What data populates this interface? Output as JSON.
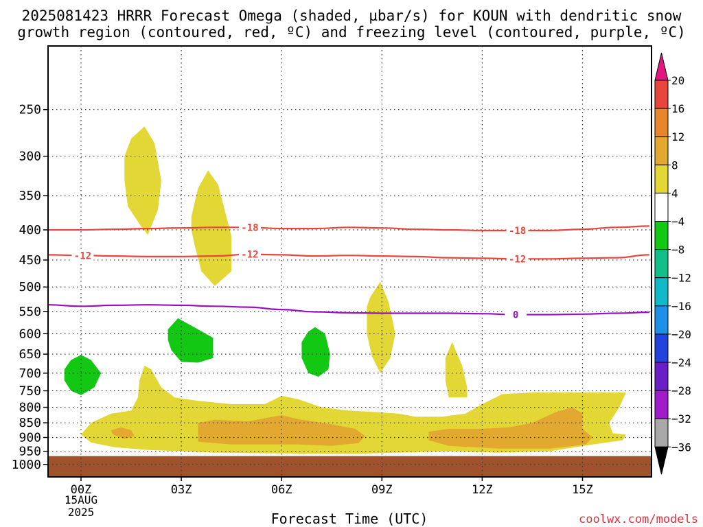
{
  "chart_data": {
    "type": "heatmap",
    "title_line1": "2025081423 HRRR Forecast Omega (shaded, µbar/s) for KOUN with dendritic snow",
    "title_line2": "growth region (contoured, red, ºC) and freezing level (contoured, purple, ºC)",
    "xlabel": "Forecast Time (UTC)",
    "ylabel": "",
    "x_unit": "forecast hours from 2025-08-15 00Z",
    "xlim": [
      -1,
      17
    ],
    "ylim": [
      1050,
      195
    ],
    "y_scale": "log",
    "x_ticks": [
      {
        "x": 0,
        "label": "00Z"
      },
      {
        "x": 3,
        "label": "03Z"
      },
      {
        "x": 6,
        "label": "06Z"
      },
      {
        "x": 9,
        "label": "09Z"
      },
      {
        "x": 12,
        "label": "12Z"
      },
      {
        "x": 15,
        "label": "15Z"
      }
    ],
    "x_date_label": "15AUG",
    "x_year_label": "2025",
    "y_ticks": [
      250,
      300,
      350,
      400,
      450,
      500,
      550,
      600,
      650,
      700,
      750,
      800,
      850,
      900,
      950,
      1000
    ],
    "grid": true,
    "colorbar": {
      "placement": "right",
      "ticks": [
        "20",
        "16",
        "12",
        "8",
        "4",
        "−4",
        "−8",
        "−12",
        "−16",
        "−20",
        "−24",
        "−28",
        "−32",
        "−36"
      ],
      "bands": [
        {
          "from": 16,
          "to": 20,
          "color": "#e8453c"
        },
        {
          "from": 12,
          "to": 16,
          "color": "#e8862e"
        },
        {
          "from": 8,
          "to": 12,
          "color": "#e3a82f"
        },
        {
          "from": 4,
          "to": 8,
          "color": "#e3d735"
        },
        {
          "from": -4,
          "to": 4,
          "color": "#ffffff"
        },
        {
          "from": -8,
          "to": -4,
          "color": "#13c813"
        },
        {
          "from": -12,
          "to": -8,
          "color": "#13bf88"
        },
        {
          "from": -16,
          "to": -12,
          "color": "#12b9c6"
        },
        {
          "from": -20,
          "to": -16,
          "color": "#1e90e8"
        },
        {
          "from": -24,
          "to": -20,
          "color": "#2244dd"
        },
        {
          "from": -28,
          "to": -24,
          "color": "#6a1ec8"
        },
        {
          "from": -32,
          "to": -28,
          "color": "#a01cc8"
        },
        {
          "from": -36,
          "to": -32,
          "color": "#a8a8a8"
        }
      ],
      "top_arrow_color": "#e0157e",
      "bottom_arrow_color": "#000000"
    },
    "ground": {
      "color": "#a0522d",
      "top_pressure": 968
    },
    "shaded_regions": [
      {
        "name": "lift-300mb-01z",
        "level": "4 to 8",
        "color": "#e3d735",
        "points": [
          [
            1.3,
            300
          ],
          [
            1.5,
            280
          ],
          [
            1.9,
            267
          ],
          [
            2.2,
            285
          ],
          [
            2.4,
            330
          ],
          [
            2.3,
            370
          ],
          [
            2.0,
            408
          ],
          [
            1.8,
            395
          ],
          [
            1.4,
            365
          ],
          [
            1.3,
            330
          ]
        ]
      },
      {
        "name": "lift-400mb-04z",
        "level": "4 to 8",
        "color": "#e3d735",
        "points": [
          [
            3.3,
            380
          ],
          [
            3.5,
            340
          ],
          [
            3.8,
            317
          ],
          [
            4.1,
            335
          ],
          [
            4.5,
            410
          ],
          [
            4.5,
            470
          ],
          [
            4.0,
            498
          ],
          [
            3.6,
            470
          ],
          [
            3.4,
            425
          ],
          [
            3.3,
            400
          ]
        ]
      },
      {
        "name": "lift-600mb-09z",
        "level": "4 to 8",
        "color": "#e3d735",
        "points": [
          [
            8.55,
            540
          ],
          [
            8.65,
            520
          ],
          [
            8.95,
            490
          ],
          [
            9.2,
            530
          ],
          [
            9.4,
            600
          ],
          [
            9.25,
            660
          ],
          [
            8.95,
            700
          ],
          [
            8.7,
            655
          ],
          [
            8.55,
            600
          ]
        ]
      },
      {
        "name": "lift-700mb-11z",
        "level": "4 to 8",
        "color": "#e3d735",
        "points": [
          [
            10.9,
            660
          ],
          [
            11.1,
            620
          ],
          [
            11.4,
            680
          ],
          [
            11.55,
            740
          ],
          [
            11.55,
            770
          ],
          [
            11.0,
            770
          ],
          [
            10.9,
            720
          ]
        ]
      },
      {
        "name": "lift-850mb-band",
        "level": "4 to 8",
        "color": "#e3d735",
        "points": [
          [
            0.0,
            890
          ],
          [
            0.3,
            850
          ],
          [
            0.9,
            820
          ],
          [
            1.5,
            810
          ],
          [
            1.7,
            770
          ],
          [
            1.75,
            720
          ],
          [
            1.9,
            680
          ],
          [
            2.1,
            690
          ],
          [
            2.4,
            740
          ],
          [
            2.8,
            770
          ],
          [
            3.5,
            780
          ],
          [
            4.5,
            790
          ],
          [
            5.5,
            790
          ],
          [
            6.0,
            765
          ],
          [
            6.5,
            775
          ],
          [
            7.2,
            800
          ],
          [
            8.0,
            810
          ],
          [
            8.8,
            815
          ],
          [
            9.5,
            820
          ],
          [
            10.0,
            830
          ],
          [
            10.8,
            830
          ],
          [
            11.5,
            820
          ],
          [
            12.0,
            790
          ],
          [
            12.6,
            760
          ],
          [
            13.5,
            755
          ],
          [
            14.5,
            755
          ],
          [
            15.3,
            755
          ],
          [
            16.3,
            755
          ],
          [
            16.1,
            800
          ],
          [
            15.8,
            850
          ],
          [
            15.9,
            885
          ],
          [
            16.3,
            890
          ],
          [
            16.2,
            910
          ],
          [
            15.3,
            925
          ],
          [
            14.0,
            950
          ],
          [
            12.5,
            955
          ],
          [
            11.0,
            950
          ],
          [
            9.5,
            955
          ],
          [
            8.0,
            960
          ],
          [
            6.0,
            958
          ],
          [
            4.0,
            955
          ],
          [
            2.0,
            945
          ],
          [
            1.0,
            935
          ],
          [
            0.3,
            918
          ]
        ]
      },
      {
        "name": "lift-880mb-01z",
        "level": "8 to 12",
        "color": "#e3a82f",
        "points": [
          [
            0.9,
            875
          ],
          [
            1.2,
            865
          ],
          [
            1.5,
            875
          ],
          [
            1.6,
            895
          ],
          [
            1.3,
            905
          ],
          [
            0.95,
            890
          ]
        ]
      },
      {
        "name": "lift-880mb-05z",
        "level": "8 to 12",
        "color": "#e3a82f",
        "points": [
          [
            3.5,
            850
          ],
          [
            4.0,
            840
          ],
          [
            5.0,
            845
          ],
          [
            6.0,
            825
          ],
          [
            6.5,
            838
          ],
          [
            7.5,
            855
          ],
          [
            8.2,
            870
          ],
          [
            8.5,
            895
          ],
          [
            8.3,
            920
          ],
          [
            7.5,
            930
          ],
          [
            6.5,
            925
          ],
          [
            5.5,
            925
          ],
          [
            4.5,
            925
          ],
          [
            3.5,
            915
          ],
          [
            3.5,
            880
          ]
        ]
      },
      {
        "name": "lift-880mb-13z",
        "level": "8 to 12",
        "color": "#e3a82f",
        "points": [
          [
            10.4,
            880
          ],
          [
            11.0,
            870
          ],
          [
            12.0,
            870
          ],
          [
            12.8,
            865
          ],
          [
            13.5,
            850
          ],
          [
            14.2,
            815
          ],
          [
            14.7,
            800
          ],
          [
            15.0,
            820
          ],
          [
            15.0,
            870
          ],
          [
            15.3,
            900
          ],
          [
            15.1,
            925
          ],
          [
            14.0,
            940
          ],
          [
            12.5,
            940
          ],
          [
            11.0,
            930
          ],
          [
            10.4,
            910
          ]
        ]
      },
      {
        "name": "sink-700mb-00z",
        "level": "-8 to -4",
        "color": "#13c813",
        "points": [
          [
            -0.5,
            690
          ],
          [
            -0.3,
            665
          ],
          [
            0.0,
            652
          ],
          [
            0.3,
            665
          ],
          [
            0.6,
            700
          ],
          [
            0.4,
            740
          ],
          [
            0.0,
            763
          ],
          [
            -0.3,
            750
          ],
          [
            -0.5,
            720
          ]
        ]
      },
      {
        "name": "sink-620mb-03z",
        "level": "-8 to -4",
        "color": "#13c813",
        "points": [
          [
            2.6,
            590
          ],
          [
            2.9,
            565
          ],
          [
            3.5,
            590
          ],
          [
            3.95,
            610
          ],
          [
            3.95,
            660
          ],
          [
            3.5,
            672
          ],
          [
            3.0,
            670
          ],
          [
            2.7,
            640
          ],
          [
            2.6,
            615
          ]
        ]
      },
      {
        "name": "sink-650mb-07z",
        "level": "-8 to -4",
        "color": "#13c813",
        "points": [
          [
            6.6,
            620
          ],
          [
            6.8,
            595
          ],
          [
            7.0,
            585
          ],
          [
            7.3,
            600
          ],
          [
            7.45,
            650
          ],
          [
            7.4,
            690
          ],
          [
            7.1,
            710
          ],
          [
            6.8,
            700
          ],
          [
            6.6,
            660
          ]
        ]
      }
    ],
    "series": [
      {
        "name": "-18",
        "style": "contour",
        "color": "#e8453c",
        "x": [
          -1,
          0,
          1,
          2,
          3,
          4,
          5,
          6,
          7,
          8,
          9,
          10,
          11,
          12,
          13,
          14,
          15,
          16,
          17
        ],
        "y": [
          400,
          400,
          399,
          398,
          397,
          396,
          396,
          398,
          398,
          396,
          397,
          399,
          400,
          401,
          401,
          401,
          399,
          396,
          394
        ],
        "labels": [
          {
            "x": 5.05,
            "text": "-18"
          },
          {
            "x": 13.05,
            "text": "-18"
          }
        ]
      },
      {
        "name": "-12",
        "style": "contour",
        "color": "#e8453c",
        "x": [
          -1,
          0,
          1,
          2,
          3,
          4,
          5,
          6,
          7,
          8,
          9,
          10,
          11,
          12,
          13,
          14,
          15,
          16,
          17
        ],
        "y": [
          441,
          442,
          443,
          444,
          444,
          443,
          440,
          441,
          443,
          442,
          443,
          444,
          446,
          447,
          448,
          448,
          447,
          446,
          441
        ],
        "labels": [
          {
            "x": 0.05,
            "text": "-12"
          },
          {
            "x": 5.05,
            "text": "-12"
          },
          {
            "x": 13.05,
            "text": "-12"
          }
        ]
      },
      {
        "name": "0",
        "style": "contour",
        "color": "#9a0fc0",
        "x": [
          -1,
          0,
          1,
          2,
          3,
          4,
          5,
          6,
          7,
          8,
          9,
          10,
          11,
          12,
          13,
          14,
          15,
          16,
          17
        ],
        "y": [
          536,
          539,
          537,
          536,
          537,
          539,
          541,
          546,
          551,
          553,
          554,
          554,
          554,
          555,
          557,
          557,
          556,
          554,
          552
        ],
        "labels": [
          {
            "x": 13.0,
            "text": "0"
          }
        ]
      }
    ]
  },
  "footer": {
    "credit": "coolwx.com/models"
  }
}
